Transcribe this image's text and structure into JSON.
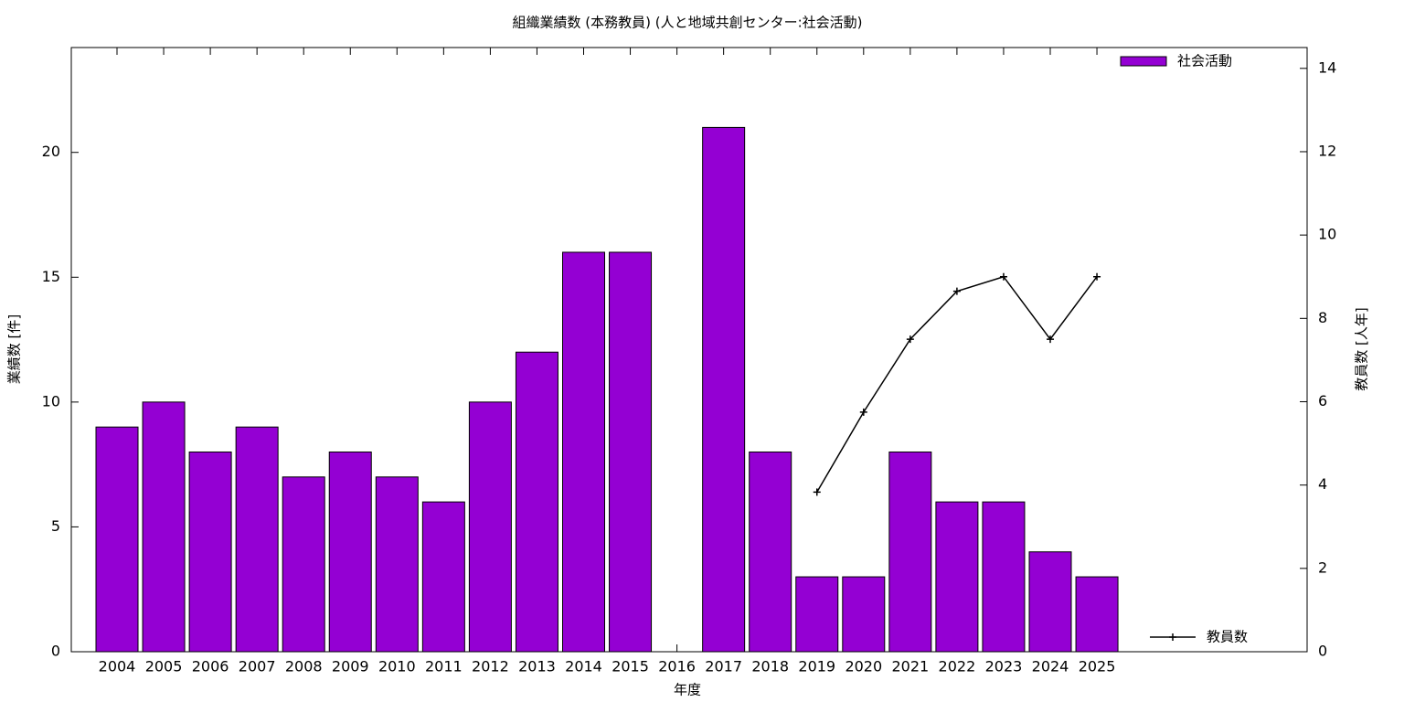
{
  "chart_data": {
    "type": "bar",
    "title": "組織業績数 (本務教員) (人と地域共創センター:社会活動)",
    "x_label": "年度",
    "y_label": "業績数 [件]",
    "y2_label": "教員数 [人年]",
    "categories": [
      "2004",
      "2005",
      "2006",
      "2007",
      "2008",
      "2009",
      "2010",
      "2011",
      "2012",
      "2013",
      "2014",
      "2015",
      "2016",
      "2017",
      "2018",
      "2019",
      "2020",
      "2021",
      "2022",
      "2023",
      "2024",
      "2025"
    ],
    "series": [
      {
        "name": "社会活動",
        "type": "bar",
        "color": "#9400d3",
        "values": [
          9,
          10,
          8,
          9,
          7,
          8,
          7,
          6,
          10,
          12,
          16,
          16,
          null,
          21,
          8,
          3,
          3,
          8,
          6,
          6,
          4,
          3
        ]
      },
      {
        "name": "教員数",
        "type": "line",
        "axis": "y2",
        "color": "#000000",
        "values": [
          null,
          null,
          null,
          null,
          null,
          null,
          null,
          null,
          null,
          null,
          null,
          null,
          null,
          null,
          null,
          3.83,
          5.75,
          7.5,
          8.65,
          9,
          7.5,
          9
        ]
      }
    ],
    "ylim": [
      0,
      24.2
    ],
    "yticks": [
      0,
      5,
      10,
      15,
      20
    ],
    "y2lim": [
      0,
      14.5
    ],
    "y2ticks": [
      0,
      2,
      4,
      6,
      8,
      10,
      12,
      14
    ]
  }
}
